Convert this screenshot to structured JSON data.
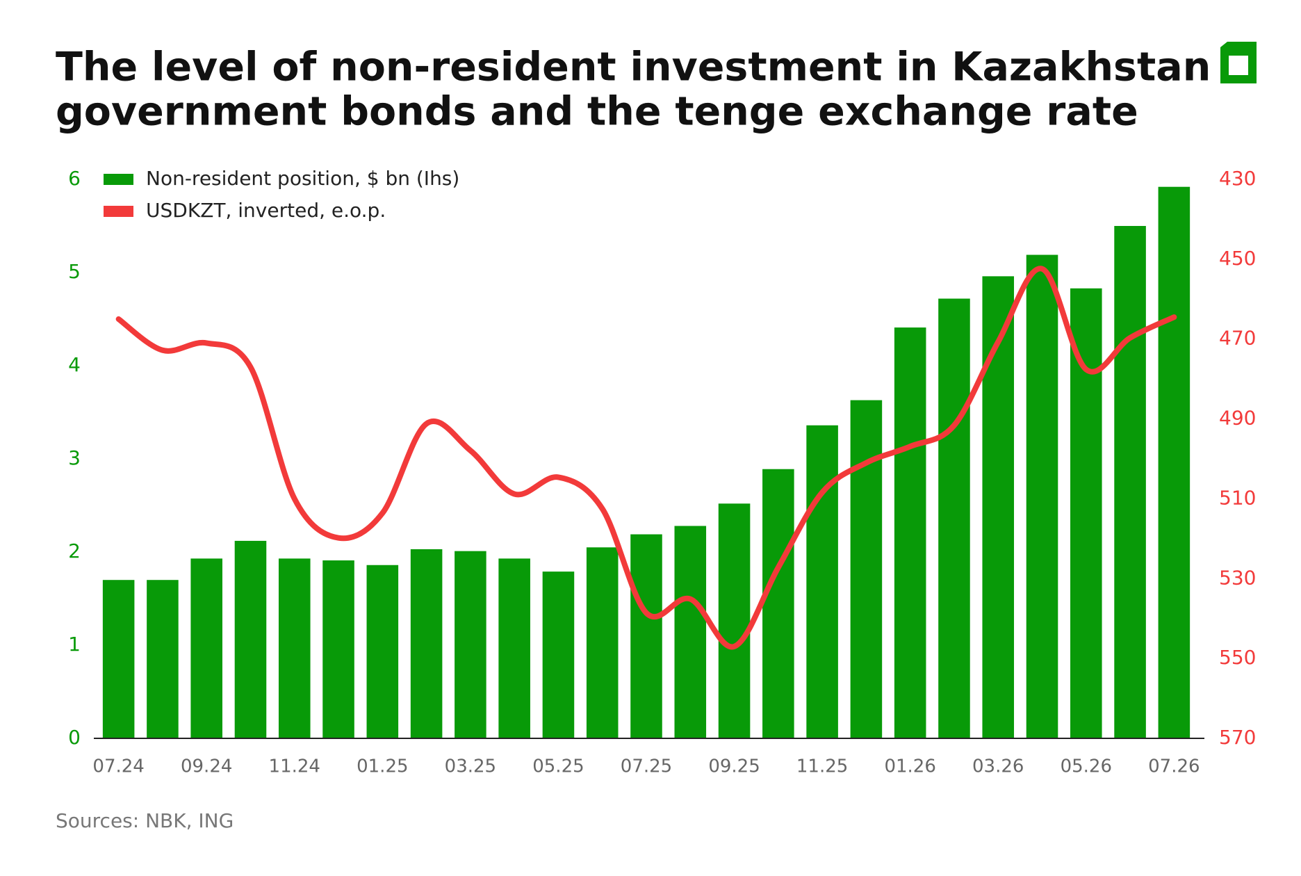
{
  "chart_data": {
    "type": "bar_line",
    "title": "The level of non-resident investment in Kazakhstan",
    "title_line2": "government bonds and the tenge exchange rate",
    "source": "Sources: NBK, ING",
    "categories": [
      "07.24",
      null,
      "09.24",
      null,
      "11.24",
      null,
      "01.25",
      null,
      "03.25",
      null,
      "05.25",
      null,
      "07.25",
      null,
      "09.25",
      null,
      "11.25",
      null,
      "01.26",
      null,
      "03.26",
      null,
      "05.26",
      null,
      "07.26"
    ],
    "series": [
      {
        "name": "Non-resident position, $ bn (Ihs)",
        "color": "#089a08",
        "type": "bar",
        "axis": "y",
        "values": [
          1.7,
          1.7,
          1.93,
          2.12,
          1.93,
          1.91,
          1.86,
          2.03,
          2.01,
          1.93,
          1.79,
          2.05,
          2.19,
          2.28,
          2.52,
          2.89,
          3.36,
          3.63,
          4.41,
          4.72,
          4.96,
          5.19,
          4.83,
          5.5,
          5.92
        ]
      },
      {
        "name": "USDKZT, inverted, e.o.p.",
        "color": "#f23a3a",
        "type": "line",
        "axis": "y2",
        "values": [
          465,
          472.8,
          471,
          477,
          510,
          519.8,
          513.6,
          491.2,
          497.9,
          508.8,
          504.6,
          512.5,
          538.6,
          535.1,
          547,
          527.2,
          508.4,
          501,
          496.9,
          491.6,
          470.7,
          452.4,
          477.6,
          469.7,
          464.5
        ]
      }
    ],
    "ylim": [
      0,
      6
    ],
    "yticks": [
      0,
      1,
      2,
      3,
      4,
      5,
      6
    ],
    "y2lim": [
      430,
      570
    ],
    "y2ticks": [
      430,
      450,
      470,
      490,
      510,
      530,
      550,
      570
    ],
    "y2_inverted": true,
    "grid": false,
    "legend": "top-left"
  }
}
